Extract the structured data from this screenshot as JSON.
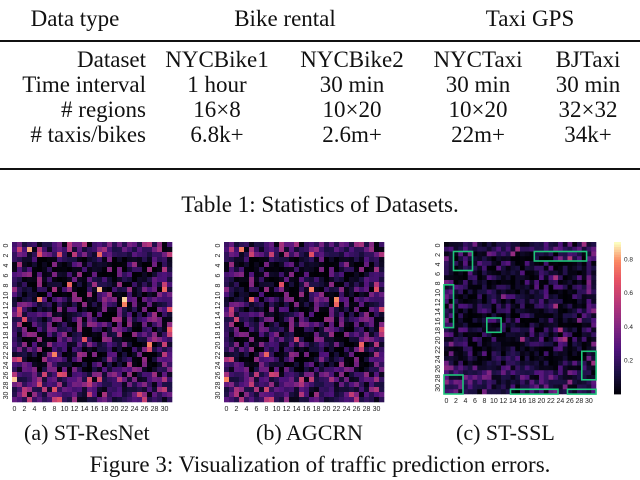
{
  "table": {
    "header": {
      "col0": "Data type",
      "group1": "Bike rental",
      "group2": "Taxi GPS"
    },
    "rows": [
      [
        "Dataset",
        "NYCBike1",
        "NYCBike2",
        "NYCTaxi",
        "BJTaxi"
      ],
      [
        "Time interval",
        "1 hour",
        "30 min",
        "30 min",
        "30 min"
      ],
      [
        "# regions",
        "16×8",
        "10×20",
        "10×20",
        "32×32"
      ],
      [
        "# taxis/bikes",
        "6.8k+",
        "2.6m+",
        "22m+",
        "34k+"
      ]
    ],
    "caption": "Table 1: Statistics of Datasets."
  },
  "figure": {
    "axis_ticks": [
      "0",
      "2",
      "4",
      "6",
      "8",
      "10",
      "12",
      "14",
      "16",
      "18",
      "20",
      "22",
      "24",
      "26",
      "28",
      "30"
    ],
    "colorbar_ticks": [
      "0.8",
      "0.6",
      "0.4",
      "0.2"
    ],
    "panels": [
      {
        "label": "(a)  ST-ResNet",
        "highlight_boxes": false
      },
      {
        "label": "(b)  AGCRN",
        "highlight_boxes": false
      },
      {
        "label": "(c)  ST-SSL",
        "highlight_boxes": true
      }
    ],
    "caption": "Figure 3: Visualization of traffic prediction errors."
  }
}
